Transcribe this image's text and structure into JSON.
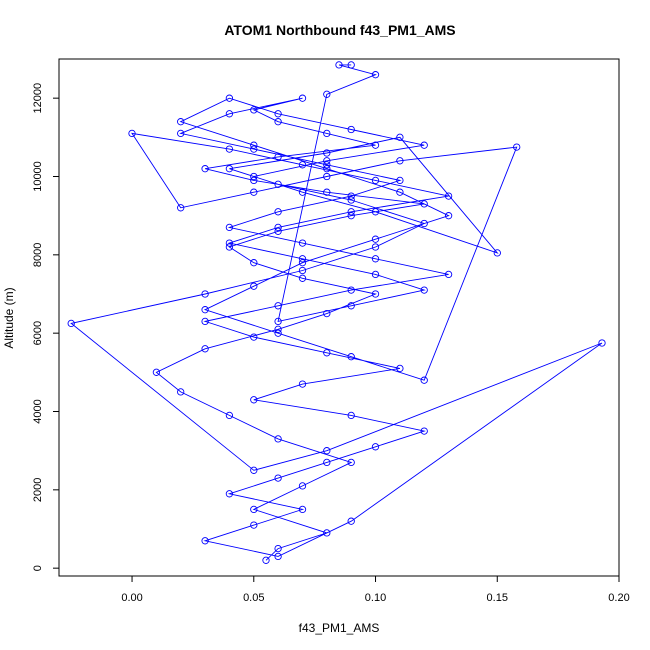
{
  "chart_data": {
    "type": "line",
    "title": "ATOM1 Northbound f43_PM1_AMS",
    "xlabel": "f43_PM1_AMS",
    "ylabel": "Altitude (m)",
    "xlim": [
      -0.03,
      0.2
    ],
    "ylim": [
      -200,
      13000
    ],
    "xticks": [
      "0.00",
      "0.05",
      "0.10",
      "0.15",
      "0.20"
    ],
    "yticks": [
      "0",
      "2000",
      "4000",
      "6000",
      "8000",
      "10000",
      "12000"
    ],
    "grid": false,
    "legend": "none",
    "style": {
      "color": "#0000ff",
      "marker": "open-circle",
      "line": "solid"
    },
    "series": [
      {
        "x": [
          0.055,
          0.06,
          0.08,
          0.05,
          0.07,
          0.09,
          0.06,
          0.04,
          0.02,
          0.01,
          0.03,
          0.06,
          0.08,
          0.1,
          0.07,
          0.05,
          0.04,
          0.06,
          0.09,
          0.12,
          0.08,
          0.05,
          0.03,
          0.06,
          0.1,
          0.08,
          0.06,
          0.05,
          0.07,
          0.04,
          0.02,
          0.05,
          0.08,
          0.11,
          0.09,
          0.06,
          0.04,
          0.07,
          0.1,
          0.13,
          0.09,
          0.06,
          0.03,
          0.05,
          0.08,
          0.11,
          0.07,
          0.05,
          0.09,
          0.12,
          0.1,
          0.08,
          0.06,
          0.04,
          0.07,
          0.05,
          0.03,
          0.06,
          0.09,
          0.193,
          0.08,
          0.05,
          -0.025,
          0.03,
          0.07,
          0.1,
          0.12,
          0.09,
          0.06,
          0.04,
          0.08,
          0.11,
          0.15,
          0.1,
          0.07,
          0.05,
          0.08,
          0.12,
          0.09,
          0.06,
          0.04,
          0.02,
          0.05,
          0.08,
          0.11,
          0.13,
          0.1,
          0.07,
          0.05,
          0.03,
          0.06,
          0.09,
          0.12,
          0.158,
          0.11,
          0.08,
          0.05,
          0.02,
          0.0,
          0.04,
          0.07,
          0.1,
          0.13,
          0.09,
          0.06,
          0.04,
          0.07,
          0.1,
          0.12,
          0.09,
          0.06,
          0.08,
          0.1,
          0.085,
          0.09
        ],
        "y": [
          200,
          500,
          900,
          1500,
          2100,
          2700,
          3300,
          3900,
          4500,
          5000,
          5600,
          6100,
          6500,
          7000,
          7400,
          7800,
          8200,
          8600,
          9000,
          9300,
          9600,
          9900,
          10200,
          10500,
          10800,
          11100,
          11400,
          11700,
          12000,
          11600,
          11100,
          10700,
          10300,
          9900,
          9500,
          9100,
          8700,
          8300,
          7900,
          7500,
          7100,
          6700,
          6300,
          5900,
          5500,
          5100,
          4700,
          4300,
          3900,
          3500,
          3100,
          2700,
          2300,
          1900,
          1500,
          1100,
          700,
          300,
          1200,
          5750,
          3000,
          2500,
          6250,
          7000,
          7600,
          8200,
          8800,
          9400,
          9800,
          10200,
          10600,
          11000,
          8050,
          9100,
          9600,
          10000,
          10400,
          10800,
          11200,
          11600,
          12000,
          11400,
          10800,
          10200,
          9600,
          9000,
          8400,
          7800,
          7200,
          6600,
          6000,
          5400,
          4800,
          10750,
          10400,
          10000,
          9600,
          9200,
          11100,
          10700,
          10300,
          9900,
          9500,
          9100,
          8700,
          8300,
          7900,
          7500,
          7100,
          6700,
          6300,
          12100,
          12600,
          12850,
          12850
        ]
      }
    ]
  }
}
